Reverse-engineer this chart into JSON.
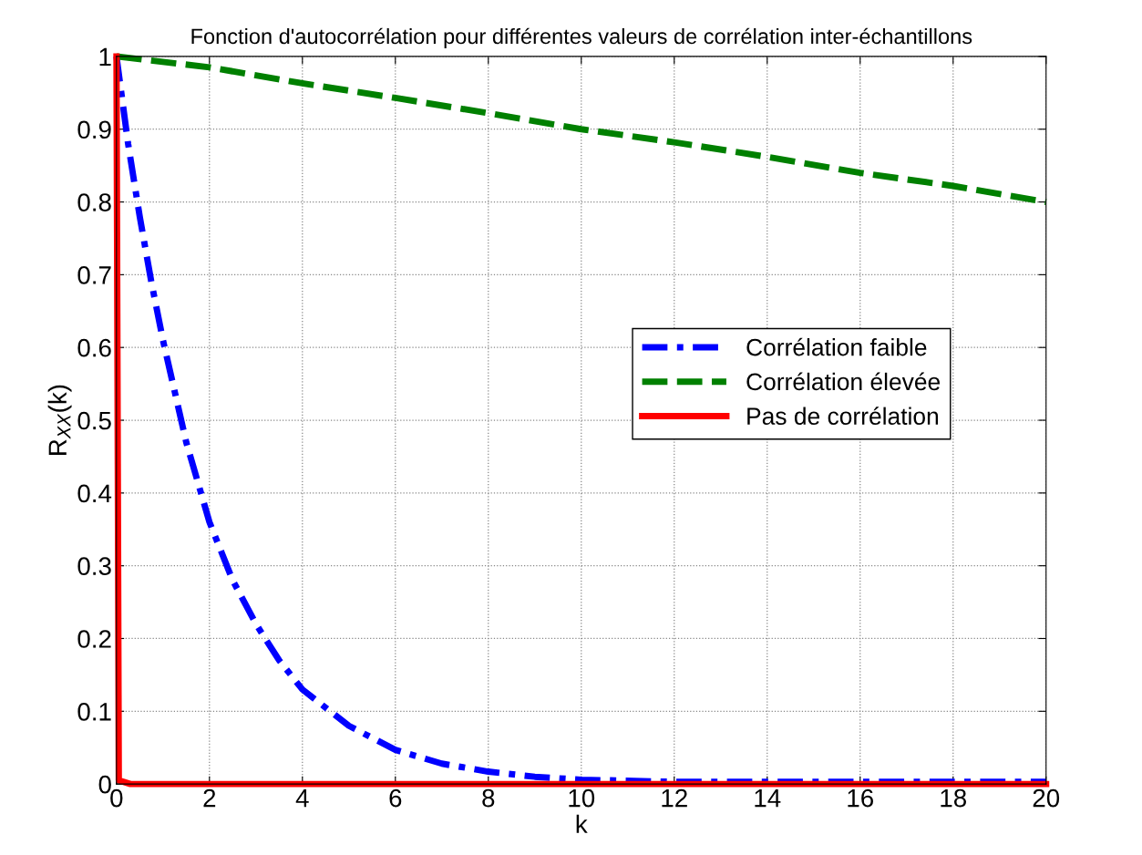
{
  "chart_data": {
    "type": "line",
    "title": "Fonction d'autocorrélation pour différentes valeurs de corrélation inter-échantillons",
    "xlabel": "k",
    "ylabel": "R$_{XX}$(k)",
    "series": [
      {
        "name": "Corrélation faible",
        "color": "#0000ff",
        "line_style": "dashdot",
        "x": [
          0,
          0.25,
          0.5,
          0.75,
          1,
          1.5,
          2,
          2.5,
          3,
          3.5,
          4,
          5,
          6,
          7,
          8,
          9,
          10,
          12,
          14,
          16,
          18,
          20
        ],
        "values": [
          1,
          0.88,
          0.78,
          0.69,
          0.61,
          0.47,
          0.36,
          0.28,
          0.22,
          0.17,
          0.13,
          0.08,
          0.047,
          0.028,
          0.017,
          0.01,
          0.006,
          0.003,
          0.003,
          0.003,
          0.003,
          0.003
        ]
      },
      {
        "name": "Corrélation élevée",
        "color": "#008000",
        "line_style": "dashed",
        "x": [
          0,
          2,
          4,
          6,
          8,
          10,
          12,
          14,
          16,
          18,
          20
        ],
        "values": [
          1,
          0.985,
          0.963,
          0.943,
          0.922,
          0.9,
          0.882,
          0.862,
          0.84,
          0.822,
          0.8
        ]
      },
      {
        "name": "Pas de corrélation",
        "color": "#ff0000",
        "line_style": "solid",
        "x": [
          0,
          0.05,
          0.3,
          20
        ],
        "values": [
          1,
          0.005,
          0,
          0
        ]
      }
    ],
    "xlim": [
      0,
      20
    ],
    "xticks": [
      0,
      2,
      4,
      6,
      8,
      10,
      12,
      14,
      16,
      18,
      20
    ],
    "ylim": [
      0,
      1
    ],
    "yticks": [
      0,
      0.1,
      0.2,
      0.3,
      0.4,
      0.5,
      0.6,
      0.7,
      0.8,
      0.9,
      1
    ],
    "grid": true,
    "legend": "right",
    "marker": "none"
  }
}
